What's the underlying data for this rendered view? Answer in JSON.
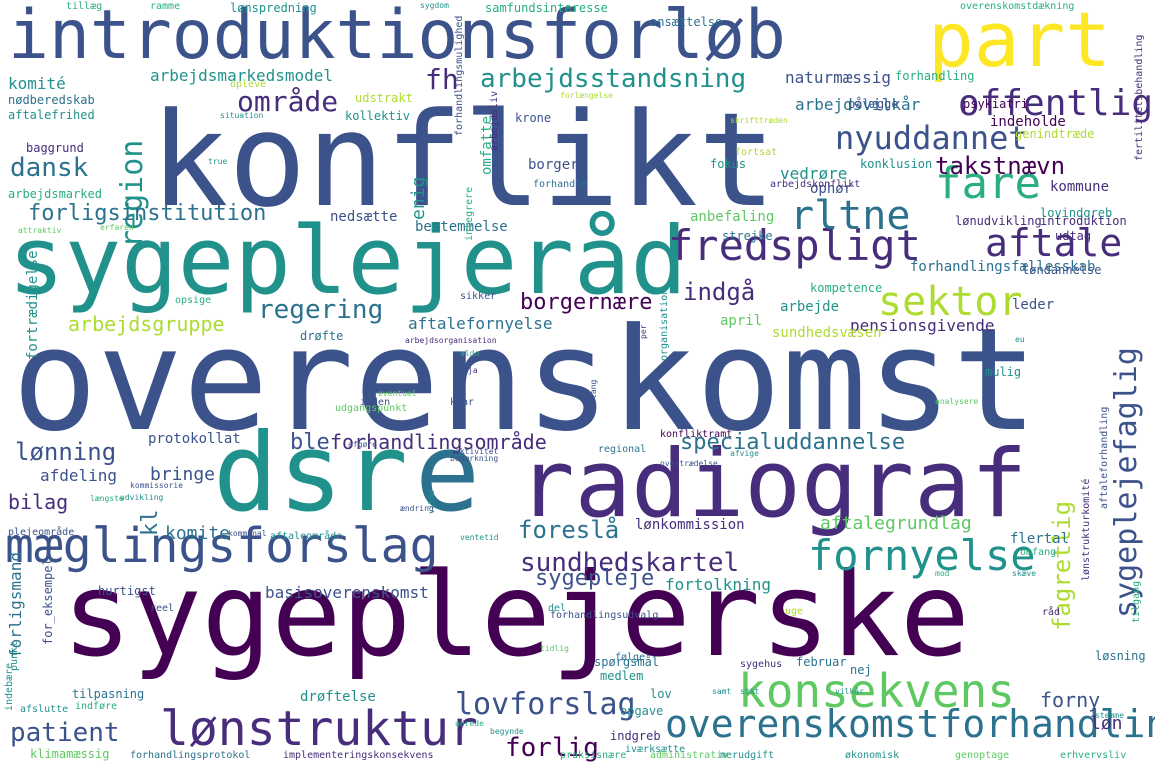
{
  "palette": [
    "#440154",
    "#472d7b",
    "#3b528b",
    "#2c728e",
    "#21918c",
    "#28ae80",
    "#5ec962",
    "#addc30",
    "#fde725"
  ],
  "words": [
    "overenskomst",
    "konflikt",
    "sygeplejerske",
    "sygeplejeråd",
    "introduktionsforløb",
    "dsr",
    "e",
    "radiograf",
    "part",
    "mæglingsforslag",
    "lønstruktur",
    "overenskomstforhandling",
    "konsekvens",
    "fredspligt",
    "rltne",
    "aftale",
    "fare",
    "fornyelse",
    "sektor",
    "offentlig",
    "nyuddannet",
    "område",
    "fh",
    "arbejdsstandsning",
    "dansk",
    "region",
    "takstnævn",
    "sygeplejefaglig",
    "fagretlig",
    "forligsinstitution",
    "regering",
    "indgå",
    "borgernære",
    "arbejdsgruppe",
    "lovforslag",
    "sundhedskartel",
    "patient",
    "forlig",
    "lønning",
    "kl",
    "specialuddannelse",
    "forhandlingsområde",
    "protokollat",
    "foreslå",
    "basisoverenskomst",
    "sygepleje",
    "fortolkning",
    "aftalefornyelse",
    "forny",
    "løn",
    "bilag",
    "bringe",
    "afdeling",
    "komite",
    "lønkommission",
    "aftalegrundlag",
    "ble",
    "komité",
    "arbejdsmarkedsmodel",
    "udstrakt",
    "naturmæssig",
    "arbejdsvilkår",
    "indeholde",
    "genindtræde",
    "konklusion",
    "kommune",
    "lovindgreb",
    "lønudvikling",
    "introduktion",
    "udtag",
    "anbefaling",
    "nedsætte",
    "bestemmelse",
    "strejke",
    "forhandlingsfællesskab",
    "løndannelse",
    "kompetence",
    "arbejde",
    "leder",
    "pensionsgivende",
    "april",
    "sundhedsvæsen",
    "drøfte",
    "vedrøre",
    "ophør",
    "fokus",
    "borger",
    "omfatte",
    "enig",
    "krone",
    "pålægge",
    "psykiatri",
    "kollektiv",
    "aftalefrihed",
    "nødberedskab",
    "baggrund",
    "arbejdsmarked",
    "lønspredning",
    "samfundsinteresse",
    "ansættelse",
    "overenskomstdækning",
    "tillæg",
    "ramme",
    "sygdom",
    "forhandling",
    "opleve",
    "situation",
    "true",
    "arbejdsliv",
    "arbejdskonflikt",
    "forhandle",
    "fortsat",
    "fertilitetsbehandling",
    "attraktiv",
    "erfaren",
    "forhandlingsmulighed",
    "integrere",
    "opsige",
    "sikker",
    "fortrædigelse",
    "inden",
    "klar",
    "mulig",
    "ja",
    "eventuel",
    "organisation",
    "lang",
    "per",
    "regional",
    "konfliktramt",
    "afgøre",
    "aktivitet",
    "overtrædelse",
    "længste",
    "kommissorie",
    "udvikling",
    "ændring",
    "kommunal",
    "ventetid",
    "aftaleområde",
    "vilde",
    "flertal",
    "omfang",
    "aftaleforhandling",
    "lønstrukturkomité",
    "råd",
    "uge",
    "tilgang",
    "forligsmand",
    "plejeområde",
    "hurtigst",
    "reel",
    "del",
    "følge",
    "spørgsmål",
    "februar",
    "medlem",
    "nej",
    "sygehus",
    "løsning",
    "tilpasning",
    "drøftelse",
    "lov",
    "opgave",
    "samt",
    "stat",
    "vilkår",
    "stemme",
    "afslutte",
    "indføre",
    "indebære",
    "punkt",
    "for_eksempel",
    "klimamæssig",
    "forhandlingsprotokol",
    "implementeringskonsekvens",
    "udrede",
    "begynde",
    "indgreb",
    "iværksætte",
    "administrativ",
    "merudgift",
    "økonomisk",
    "genoptage",
    "erhvervsliv",
    "praksisnære",
    "afvige",
    "analysere",
    "eu",
    "aldo",
    "tidlig",
    "mod",
    "forhandlingsudvalg",
    "udgangspunkt",
    "bemærkning",
    "arbejdsorganisation",
    "skæve",
    "forlængelse",
    "skrifttræden"
  ]
}
